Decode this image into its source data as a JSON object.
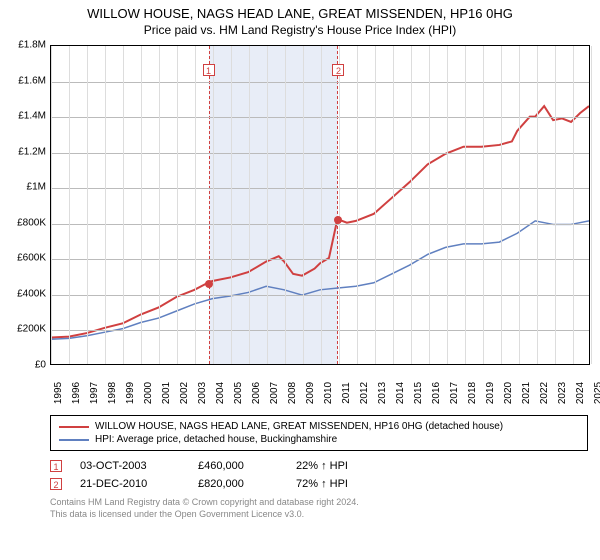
{
  "title": {
    "line1": "WILLOW HOUSE, NAGS HEAD LANE, GREAT MISSENDEN, HP16 0HG",
    "line2": "Price paid vs. HM Land Registry's House Price Index (HPI)"
  },
  "chart": {
    "type": "line",
    "background_color": "#ffffff",
    "grid_color": "#dddddd",
    "axis_color": "#000000",
    "x": {
      "min": 1995,
      "max": 2025,
      "ticks": [
        1995,
        1996,
        1997,
        1998,
        1999,
        2000,
        2001,
        2002,
        2003,
        2004,
        2005,
        2006,
        2007,
        2008,
        2009,
        2010,
        2011,
        2012,
        2013,
        2014,
        2015,
        2016,
        2017,
        2018,
        2019,
        2020,
        2021,
        2022,
        2023,
        2024,
        2025
      ]
    },
    "y": {
      "min": 0,
      "max": 1800000,
      "ticks": [
        0,
        200000,
        400000,
        600000,
        800000,
        1000000,
        1200000,
        1400000,
        1600000,
        1800000
      ],
      "tick_labels": [
        "£0",
        "£200K",
        "£400K",
        "£600K",
        "£800K",
        "£1M",
        "£1.2M",
        "£1.4M",
        "£1.6M",
        "£1.8M"
      ]
    },
    "shaded_regions": [
      {
        "x_start": 2003.75,
        "x_end": 2010.97,
        "fill": "#e8edf7",
        "border_dash": "#d04040"
      }
    ],
    "event_markers": [
      {
        "n": "1",
        "x": 2003.75,
        "y_box": 1700000
      },
      {
        "n": "2",
        "x": 2010.97,
        "y_box": 1700000
      }
    ],
    "data_points_dots": [
      {
        "x": 2003.75,
        "y": 460000
      },
      {
        "x": 2010.97,
        "y": 820000
      }
    ],
    "series": [
      {
        "name": "willow_house",
        "label": "WILLOW HOUSE, NAGS HEAD LANE, GREAT MISSENDEN, HP16 0HG (detached house)",
        "color": "#d04040",
        "line_width": 2,
        "points": [
          [
            1995,
            150000
          ],
          [
            1996,
            155000
          ],
          [
            1997,
            175000
          ],
          [
            1998,
            205000
          ],
          [
            1999,
            230000
          ],
          [
            2000,
            280000
          ],
          [
            2001,
            320000
          ],
          [
            2002,
            380000
          ],
          [
            2003,
            420000
          ],
          [
            2003.75,
            460000
          ],
          [
            2004,
            470000
          ],
          [
            2005,
            490000
          ],
          [
            2006,
            520000
          ],
          [
            2007,
            580000
          ],
          [
            2007.7,
            610000
          ],
          [
            2008,
            580000
          ],
          [
            2008.5,
            510000
          ],
          [
            2009,
            500000
          ],
          [
            2009.7,
            540000
          ],
          [
            2010,
            570000
          ],
          [
            2010.5,
            600000
          ],
          [
            2010.97,
            820000
          ],
          [
            2011.5,
            800000
          ],
          [
            2012,
            810000
          ],
          [
            2013,
            850000
          ],
          [
            2014,
            940000
          ],
          [
            2015,
            1030000
          ],
          [
            2016,
            1130000
          ],
          [
            2017,
            1190000
          ],
          [
            2018,
            1230000
          ],
          [
            2019,
            1230000
          ],
          [
            2020,
            1240000
          ],
          [
            2020.7,
            1260000
          ],
          [
            2021,
            1320000
          ],
          [
            2021.7,
            1400000
          ],
          [
            2022,
            1400000
          ],
          [
            2022.5,
            1460000
          ],
          [
            2023,
            1380000
          ],
          [
            2023.5,
            1390000
          ],
          [
            2024,
            1370000
          ],
          [
            2024.5,
            1420000
          ],
          [
            2025,
            1460000
          ]
        ]
      },
      {
        "name": "hpi",
        "label": "HPI: Average price, detached house, Buckinghamshire",
        "color": "#6080c0",
        "line_width": 1.5,
        "points": [
          [
            1995,
            140000
          ],
          [
            1996,
            145000
          ],
          [
            1997,
            160000
          ],
          [
            1998,
            180000
          ],
          [
            1999,
            200000
          ],
          [
            2000,
            235000
          ],
          [
            2001,
            260000
          ],
          [
            2002,
            300000
          ],
          [
            2003,
            340000
          ],
          [
            2004,
            370000
          ],
          [
            2005,
            385000
          ],
          [
            2006,
            405000
          ],
          [
            2007,
            440000
          ],
          [
            2008,
            420000
          ],
          [
            2009,
            390000
          ],
          [
            2010,
            420000
          ],
          [
            2011,
            430000
          ],
          [
            2012,
            440000
          ],
          [
            2013,
            460000
          ],
          [
            2014,
            510000
          ],
          [
            2015,
            560000
          ],
          [
            2016,
            620000
          ],
          [
            2017,
            660000
          ],
          [
            2018,
            680000
          ],
          [
            2019,
            680000
          ],
          [
            2020,
            690000
          ],
          [
            2021,
            740000
          ],
          [
            2022,
            810000
          ],
          [
            2023,
            790000
          ],
          [
            2024,
            790000
          ],
          [
            2025,
            810000
          ]
        ]
      }
    ]
  },
  "legend": {
    "items": [
      {
        "color": "#d04040",
        "label": "WILLOW HOUSE, NAGS HEAD LANE, GREAT MISSENDEN, HP16 0HG (detached house)"
      },
      {
        "color": "#6080c0",
        "label": "HPI: Average price, detached house, Buckinghamshire"
      }
    ]
  },
  "events": [
    {
      "n": "1",
      "date": "03-OCT-2003",
      "price": "£460,000",
      "pct": "22%",
      "direction": "up",
      "ref": "HPI"
    },
    {
      "n": "2",
      "date": "21-DEC-2010",
      "price": "£820,000",
      "pct": "72%",
      "direction": "up",
      "ref": "HPI"
    }
  ],
  "footer": {
    "line1": "Contains HM Land Registry data © Crown copyright and database right 2024.",
    "line2": "This data is licensed under the Open Government Licence v3.0."
  }
}
